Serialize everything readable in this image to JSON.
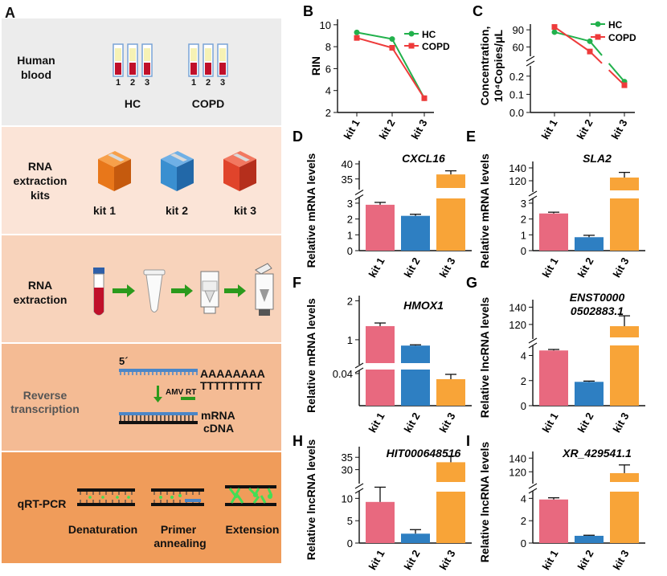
{
  "panelA": {
    "letter": "A",
    "blood": {
      "title_l1": "Human",
      "title_l2": "blood",
      "group1": "HC",
      "group2": "COPD",
      "tube_numbers": [
        "1",
        "2",
        "3"
      ]
    },
    "kits": {
      "title_l1": "RNA",
      "title_l2": "extraction",
      "title_l3": "kits",
      "kit_labels": [
        "kit 1",
        "kit 2",
        "kit 3"
      ]
    },
    "extraction": {
      "title_l1": "RNA",
      "title_l2": "extraction"
    },
    "rt": {
      "title_l1": "Reverse",
      "title_l2": "transcription",
      "five_prime": "5´",
      "polyA": "AAAAAAAA",
      "polyT": "TTTTTTTTT",
      "enzyme": "AMV RT",
      "mrna": "mRNA",
      "cdna": "cDNA"
    },
    "qpcr": {
      "title": "qRT-PCR",
      "step1": "Denaturation",
      "step2_l1": "Primer",
      "step2_l2": "annealing",
      "step3": "Extension"
    }
  },
  "colors": {
    "hc": "#22b14c",
    "copd": "#ee3b3b",
    "kit1": "#e8697f",
    "kit2": "#2e7fc2",
    "kit3": "#f8a438",
    "bg1": "#ececec",
    "bg2": "#fbe4d7",
    "bg3": "#f8d3bb",
    "bg4": "#f4bb94",
    "bg5": "#f09c5a"
  },
  "chart_data": [
    {
      "id": "B",
      "type": "line",
      "letter": "B",
      "ylabel": "RIN",
      "categories": [
        "kit 1",
        "kit 2",
        "kit 3"
      ],
      "yticks": [
        "2",
        "4",
        "6",
        "8",
        "10"
      ],
      "ylim": [
        2,
        10.5
      ],
      "series": [
        {
          "name": "HC",
          "values": [
            9.3,
            8.7,
            3.3
          ]
        },
        {
          "name": "COPD",
          "values": [
            8.8,
            7.9,
            3.3
          ]
        }
      ]
    },
    {
      "id": "C",
      "type": "line",
      "letter": "C",
      "ylabel_l1": "Concentration,",
      "ylabel_l2": "10⁴Copies/μL",
      "categories": [
        "kit 1",
        "kit 2",
        "kit 3"
      ],
      "yticks_top": [
        "60",
        "90"
      ],
      "yticks_bottom": [
        "0.0",
        "0.1",
        "0.2"
      ],
      "series": [
        {
          "name": "HC",
          "values": [
            86,
            70,
            0.17
          ]
        },
        {
          "name": "COPD",
          "values": [
            95,
            52,
            0.15
          ]
        }
      ]
    },
    {
      "id": "D",
      "type": "bar",
      "letter": "D",
      "title": "CXCL16",
      "ylabel": "Relative mRNA levels",
      "categories": [
        "kit 1",
        "kit 2",
        "kit 3"
      ],
      "yticks_low": [
        "0",
        "1",
        "2",
        "3"
      ],
      "yticks_high": [
        "35",
        "40"
      ],
      "values": [
        2.9,
        2.2,
        36.5
      ],
      "errors": [
        0.15,
        0.1,
        1.2
      ]
    },
    {
      "id": "E",
      "type": "bar",
      "letter": "E",
      "title": "SLA2",
      "ylabel": "Relative mRNA levels",
      "categories": [
        "kit 1",
        "kit 2",
        "kit 3"
      ],
      "yticks_low": [
        "0",
        "1",
        "2",
        "3"
      ],
      "yticks_high": [
        "120",
        "140"
      ],
      "values": [
        2.35,
        0.85,
        125
      ],
      "errors": [
        0.08,
        0.12,
        8
      ]
    },
    {
      "id": "F",
      "type": "bar",
      "letter": "F",
      "title": "HMOX1",
      "ylabel": "Relative mRNA levels",
      "categories": [
        "kit 1",
        "kit 2",
        "kit 3"
      ],
      "yticks_low": [
        "0.04"
      ],
      "yticks_high": [
        "1",
        "2"
      ],
      "values": [
        1.35,
        0.85,
        0.033
      ],
      "errors": [
        0.08,
        0.02,
        0.006
      ]
    },
    {
      "id": "G",
      "type": "bar",
      "letter": "G",
      "title_l1": "ENST0000",
      "title_l2": "0502883.1",
      "ylabel": "Relative lncRNA levels",
      "categories": [
        "kit 1",
        "kit 2",
        "kit 3"
      ],
      "yticks_low": [
        "0",
        "2",
        "4"
      ],
      "yticks_high": [
        "120",
        "140"
      ],
      "values": [
        4.4,
        1.9,
        118
      ],
      "errors": [
        0.08,
        0.06,
        12
      ]
    },
    {
      "id": "H",
      "type": "bar",
      "letter": "H",
      "title": "HIT000648516",
      "ylabel": "Relative lncRNA levels",
      "categories": [
        "kit 1",
        "kit 2",
        "kit 3"
      ],
      "yticks_low": [
        "0",
        "5",
        "10"
      ],
      "yticks_high": [
        "30",
        "35"
      ],
      "values": [
        9.2,
        2.1,
        33
      ],
      "errors": [
        3.3,
        0.9,
        2.5
      ]
    },
    {
      "id": "I",
      "type": "bar",
      "letter": "I",
      "title": "XR_429541.1",
      "ylabel": "Relative lncRNA levels",
      "categories": [
        "kit 1",
        "kit 2",
        "kit 3"
      ],
      "yticks_low": [
        "0",
        "2",
        "4"
      ],
      "yticks_high": [
        "120",
        "140"
      ],
      "values": [
        3.9,
        0.65,
        118
      ],
      "errors": [
        0.15,
        0.05,
        12
      ]
    }
  ]
}
